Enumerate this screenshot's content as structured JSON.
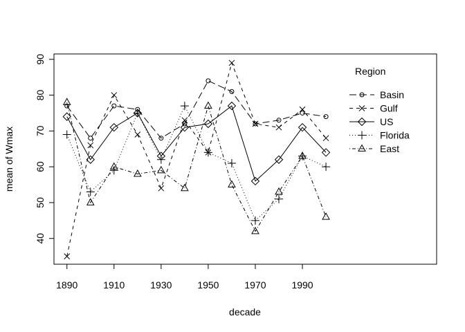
{
  "chart_data": {
    "type": "line",
    "xlabel": "decade",
    "ylabel": "mean of  Wmax",
    "x": [
      1890,
      1900,
      1910,
      1920,
      1930,
      1940,
      1950,
      1960,
      1970,
      1980,
      1990,
      2000
    ],
    "xticks": [
      "1890",
      "1910",
      "1930",
      "1950",
      "1970",
      "1990"
    ],
    "yticks": [
      "40",
      "50",
      "60",
      "70",
      "80",
      "90"
    ],
    "xlim": [
      1884.5,
      2047
    ],
    "ylim": [
      32.8,
      91.5
    ],
    "grid": false,
    "legend": {
      "title": "Region",
      "position": "top-right"
    },
    "series": [
      {
        "name": "Basin",
        "marker": "circle",
        "dash": "10,5",
        "values": [
          77,
          68,
          77,
          76,
          68,
          72,
          84,
          81,
          72,
          73,
          75,
          74
        ]
      },
      {
        "name": "Gulf",
        "marker": "x",
        "dash": "5,5",
        "values": [
          35,
          66,
          80,
          69,
          54,
          73,
          64,
          89,
          72,
          71,
          76,
          68
        ]
      },
      {
        "name": "US",
        "marker": "diamond",
        "dash": "",
        "values": [
          74,
          62,
          71,
          75,
          63,
          71,
          72,
          77,
          56,
          62,
          71,
          64
        ]
      },
      {
        "name": "Florida",
        "marker": "plus",
        "dash": "1,3",
        "values": [
          69,
          53,
          59,
          75,
          62,
          77,
          64,
          61,
          45,
          51,
          63,
          60
        ]
      },
      {
        "name": "East",
        "marker": "triangle",
        "dash": "1,3,5,3",
        "values": [
          78,
          50,
          60,
          58,
          59,
          54,
          77,
          55,
          42,
          53,
          63,
          46
        ]
      }
    ]
  }
}
